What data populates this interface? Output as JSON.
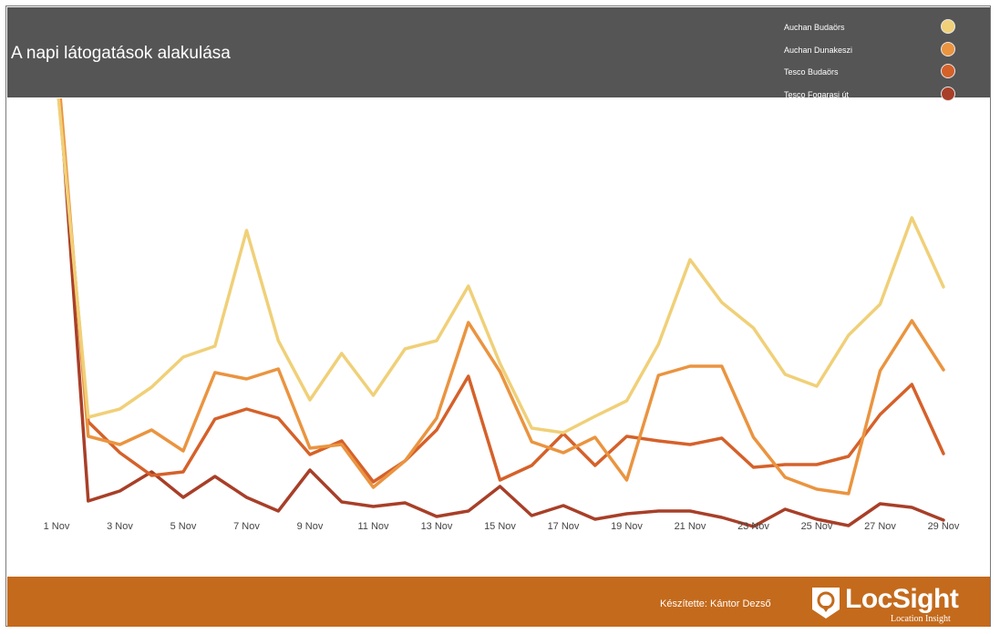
{
  "header": {
    "title": "A napi látogatások alakulása"
  },
  "legend": [
    {
      "label": "Auchan Budaörs",
      "color": "#f0d078"
    },
    {
      "label": "Auchan Dunakeszi",
      "color": "#ea9440"
    },
    {
      "label": "Tesco Budaörs",
      "color": "#d5612a"
    },
    {
      "label": "Tesco Fogarasi út",
      "color": "#a83f28"
    }
  ],
  "footer": {
    "credit": "Készítette: Kántor Dezső",
    "logo_name": "LocSight",
    "logo_tagline": "Location Insight"
  },
  "chart_data": {
    "type": "line",
    "title": "A napi látogatások alakulása",
    "x": [
      "1 Nov",
      "2 Nov",
      "3 Nov",
      "4 Nov",
      "5 Nov",
      "6 Nov",
      "7 Nov",
      "8 Nov",
      "9 Nov",
      "10 Nov",
      "11 Nov",
      "12 Nov",
      "13 Nov",
      "14 Nov",
      "15 Nov",
      "16 Nov",
      "17 Nov",
      "18 Nov",
      "19 Nov",
      "20 Nov",
      "21 Nov",
      "22 Nov",
      "23 Nov",
      "24 Nov",
      "25 Nov",
      "26 Nov",
      "27 Nov",
      "28 Nov",
      "29 Nov"
    ],
    "x_tick_labels": [
      "1 Nov",
      "3 Nov",
      "5 Nov",
      "7 Nov",
      "9 Nov",
      "11 Nov",
      "13 Nov",
      "15 Nov",
      "17 Nov",
      "19 Nov",
      "21 Nov",
      "23 Nov",
      "25 Nov",
      "27 Nov",
      "29 Nov"
    ],
    "y_axis_shown": false,
    "grid": false,
    "legend_position": "top-right",
    "series": [
      {
        "name": "Auchan Budaörs",
        "color": "#f0d078",
        "values": [
          84,
          458,
          449,
          425,
          392,
          380,
          253,
          374,
          439,
          388,
          434,
          383,
          374,
          314,
          399,
          470,
          475,
          457,
          440,
          378,
          285,
          332,
          360,
          411,
          424,
          368,
          334,
          239,
          315
        ]
      },
      {
        "name": "Auchan Dunakeszi",
        "color": "#ea9440",
        "values": [
          56,
          479,
          488,
          472,
          495,
          409,
          416,
          405,
          492,
          488,
          535,
          506,
          459,
          354,
          408,
          485,
          497,
          480,
          527,
          412,
          402,
          402,
          480,
          524,
          537,
          542,
          407,
          352,
          406
        ]
      },
      {
        "name": "Tesco Budaörs",
        "color": "#d5612a",
        "values": [
          80,
          463,
          497,
          522,
          518,
          460,
          449,
          459,
          499,
          484,
          529,
          506,
          472,
          413,
          527,
          511,
          476,
          511,
          479,
          484,
          488,
          481,
          513,
          510,
          510,
          501,
          455,
          422,
          498
        ]
      },
      {
        "name": "Tesco Fogarasi út",
        "color": "#a83f28",
        "values": [
          55,
          550,
          539,
          518,
          546,
          523,
          546,
          561,
          516,
          551,
          556,
          552,
          567,
          561,
          534,
          566,
          555,
          570,
          564,
          561,
          561,
          568,
          578,
          559,
          570,
          577,
          553,
          557,
          571
        ]
      }
    ]
  }
}
